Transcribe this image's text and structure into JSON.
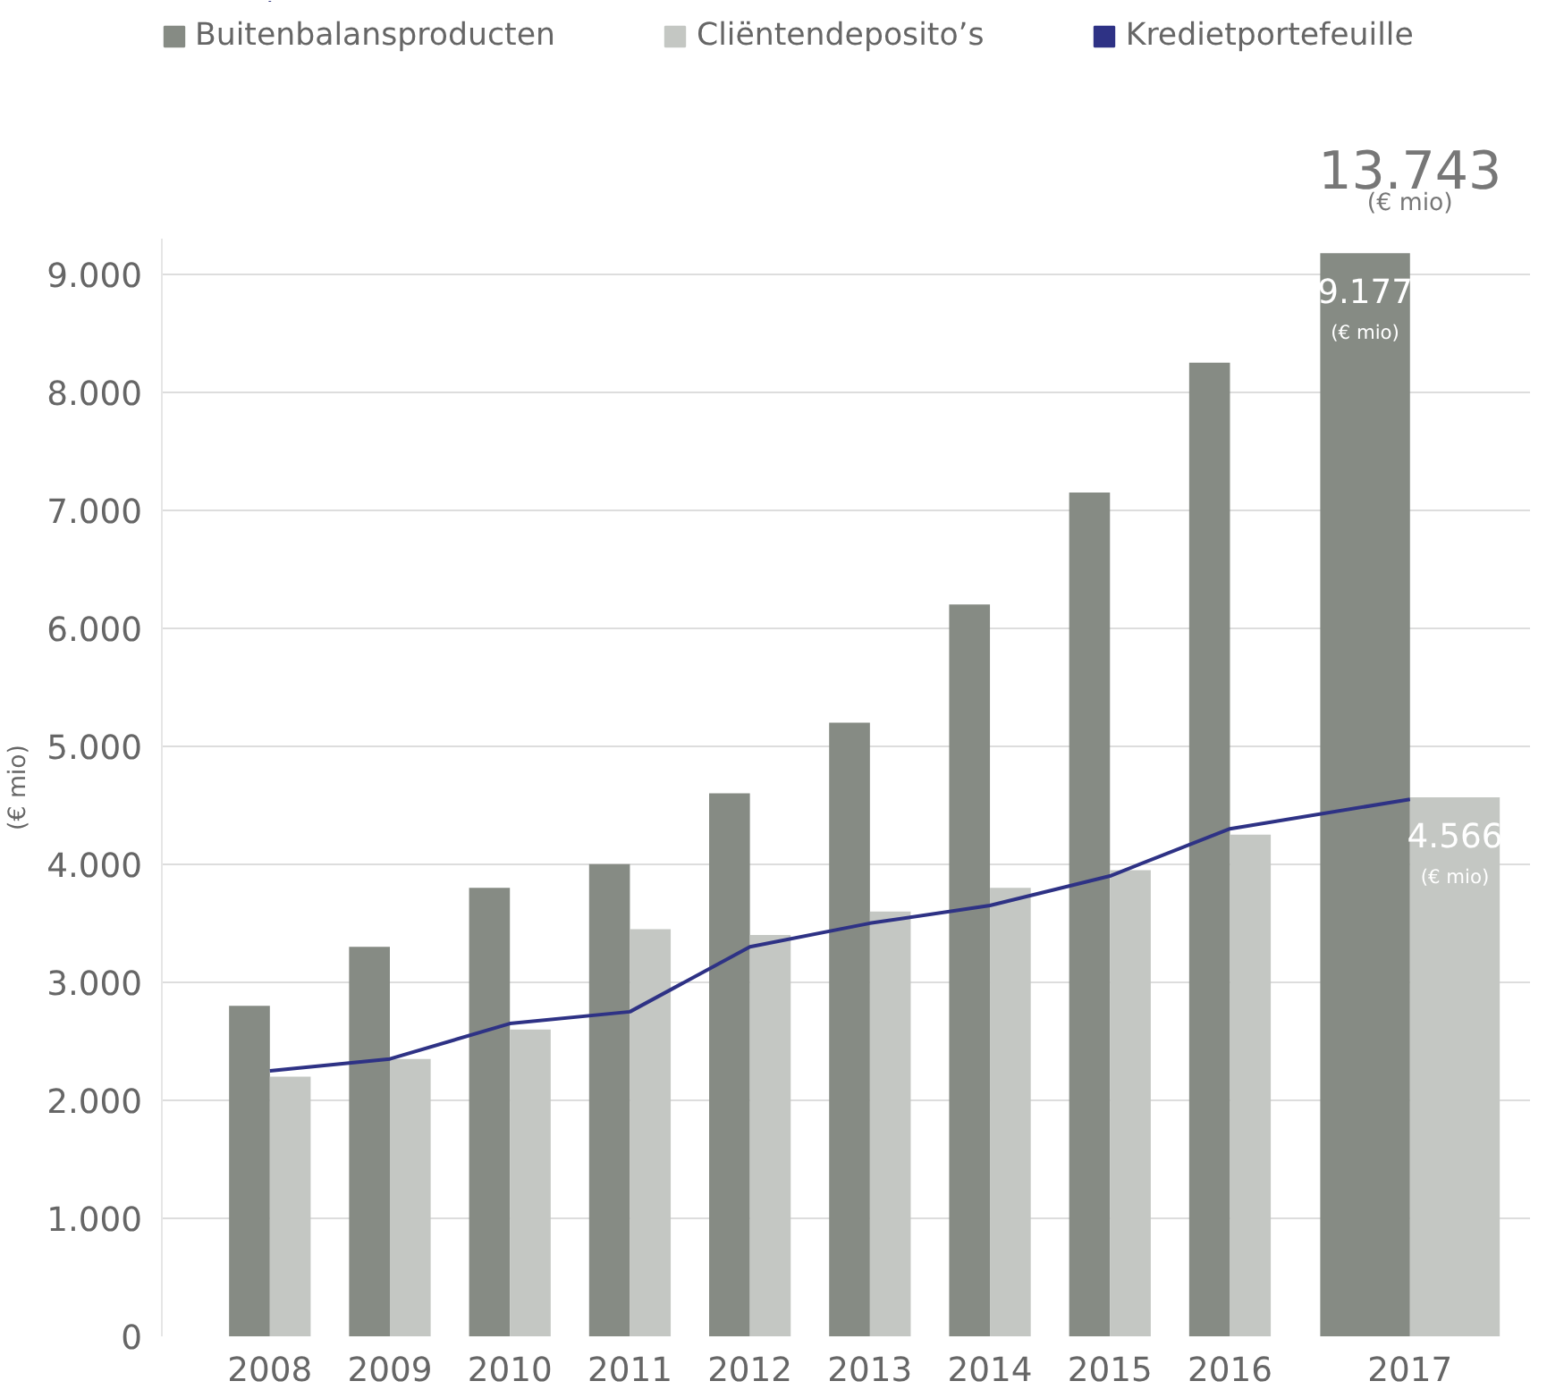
{
  "chart_data": {
    "type": "bar",
    "ylabel": "(€ mio)",
    "categories": [
      "2008",
      "2009",
      "2010",
      "2011",
      "2012",
      "2013",
      "2014",
      "2015",
      "2016",
      "2017"
    ],
    "series": [
      {
        "name": "Buitenbalansproducten",
        "color": "#868b84",
        "values": [
          2800,
          3300,
          3800,
          4000,
          4600,
          5200,
          6200,
          7150,
          8250,
          9177
        ],
        "value_labels": [
          null,
          null,
          null,
          null,
          null,
          null,
          null,
          null,
          null,
          "9.177\n(€ mio)"
        ]
      },
      {
        "name": "Cliëntendeposito’s",
        "color": "#c4c7c3",
        "values": [
          2200,
          2350,
          2600,
          3450,
          3400,
          3600,
          3800,
          3950,
          4250,
          4566
        ],
        "value_labels": [
          null,
          null,
          null,
          null,
          null,
          null,
          null,
          null,
          null,
          "4.566\n(€ mio)"
        ]
      },
      {
        "name": "Kredietportefeuille",
        "type": "line",
        "color": "#2e3285",
        "values": [
          2250,
          2350,
          2650,
          2750,
          3300,
          3500,
          3650,
          3900,
          4300,
          4550
        ]
      }
    ],
    "annotations": [
      "13.743",
      "(€ mio)"
    ],
    "ylim": [
      0,
      9300
    ],
    "yticks": [
      {
        "value": 0,
        "label": "0"
      },
      {
        "value": 1000,
        "label": "1.000"
      },
      {
        "value": 2000,
        "label": "2.000"
      },
      {
        "value": 3000,
        "label": "3.000"
      },
      {
        "value": 4000,
        "label": "4.000"
      },
      {
        "value": 5000,
        "label": "5.000"
      },
      {
        "value": 6000,
        "label": "6.000"
      },
      {
        "value": 7000,
        "label": "7.000"
      },
      {
        "value": 8000,
        "label": "8.000"
      },
      {
        "value": 9000,
        "label": "9.000"
      }
    ],
    "grid": "y",
    "legend": "top"
  }
}
